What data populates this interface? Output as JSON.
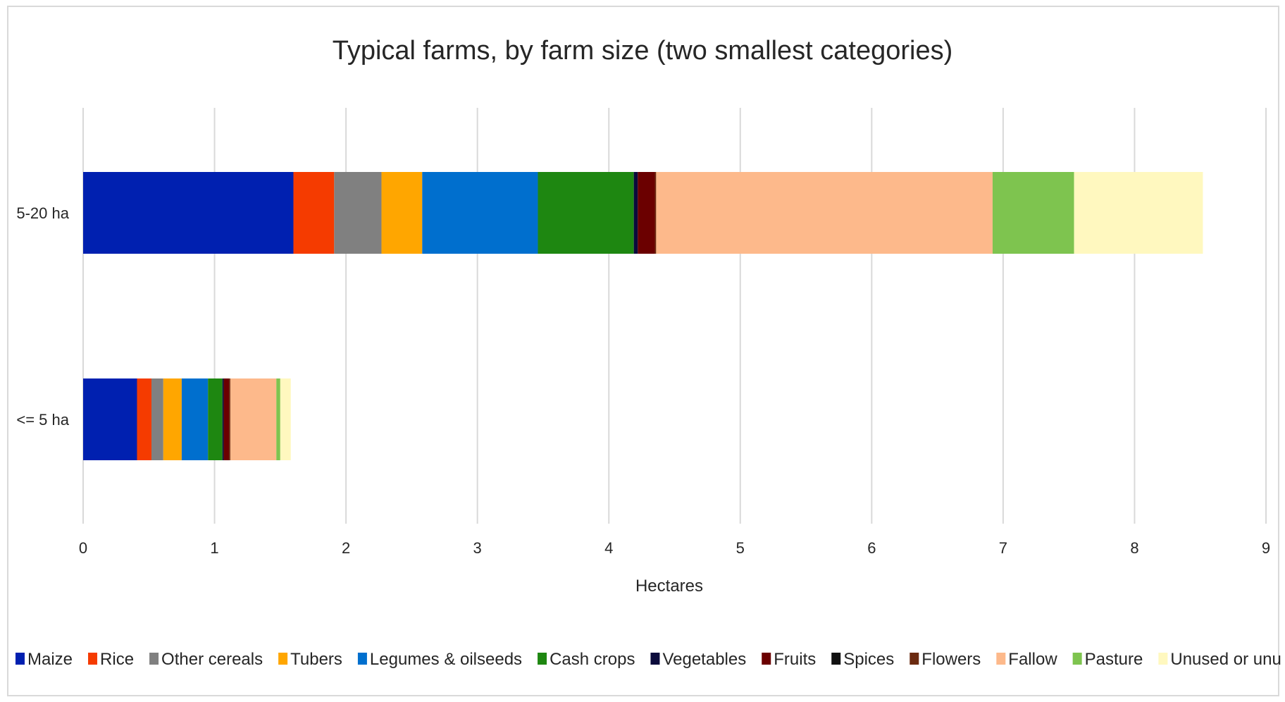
{
  "chart_data": {
    "type": "bar",
    "orientation": "horizontal",
    "stacked": true,
    "title": "Typical farms, by farm size (two smallest categories)",
    "xlabel": "Hectares",
    "ylabel": "",
    "xlim": [
      0,
      9
    ],
    "x_ticks": [
      "0",
      "1",
      "2",
      "3",
      "4",
      "5",
      "6",
      "7",
      "8",
      "9"
    ],
    "grid": true,
    "legend_position": "bottom",
    "categories": [
      "5-20 ha",
      "<= 5 ha"
    ],
    "series": [
      {
        "name": "Maize",
        "color": "#0020b0",
        "values": [
          1.6,
          0.41
        ]
      },
      {
        "name": "Rice",
        "color": "#f53b00",
        "values": [
          0.31,
          0.11
        ]
      },
      {
        "name": "Other cereals",
        "color": "#808080",
        "values": [
          0.36,
          0.09
        ]
      },
      {
        "name": "Tubers",
        "color": "#ffa600",
        "values": [
          0.31,
          0.14
        ]
      },
      {
        "name": "Legumes & oilseeds",
        "color": "#006fce",
        "values": [
          0.88,
          0.2
        ]
      },
      {
        "name": "Cash crops",
        "color": "#1e8711",
        "values": [
          0.73,
          0.11
        ]
      },
      {
        "name": "Vegetables",
        "color": "#0b0b3b",
        "values": [
          0.03,
          0.01
        ]
      },
      {
        "name": "Fruits",
        "color": "#6b0000",
        "values": [
          0.13,
          0.04
        ]
      },
      {
        "name": "Spices",
        "color": "#111111",
        "values": [
          0.0,
          0.0
        ]
      },
      {
        "name": "Flowers",
        "color": "#6b2a10",
        "values": [
          0.01,
          0.01
        ]
      },
      {
        "name": "Fallow",
        "color": "#fdb98b",
        "values": [
          2.56,
          0.35
        ]
      },
      {
        "name": "Pasture",
        "color": "#7ec44f",
        "values": [
          0.62,
          0.03
        ]
      },
      {
        "name": "Unused or unusable",
        "color": "#fff8bf",
        "values": [
          0.98,
          0.08
        ]
      }
    ]
  }
}
